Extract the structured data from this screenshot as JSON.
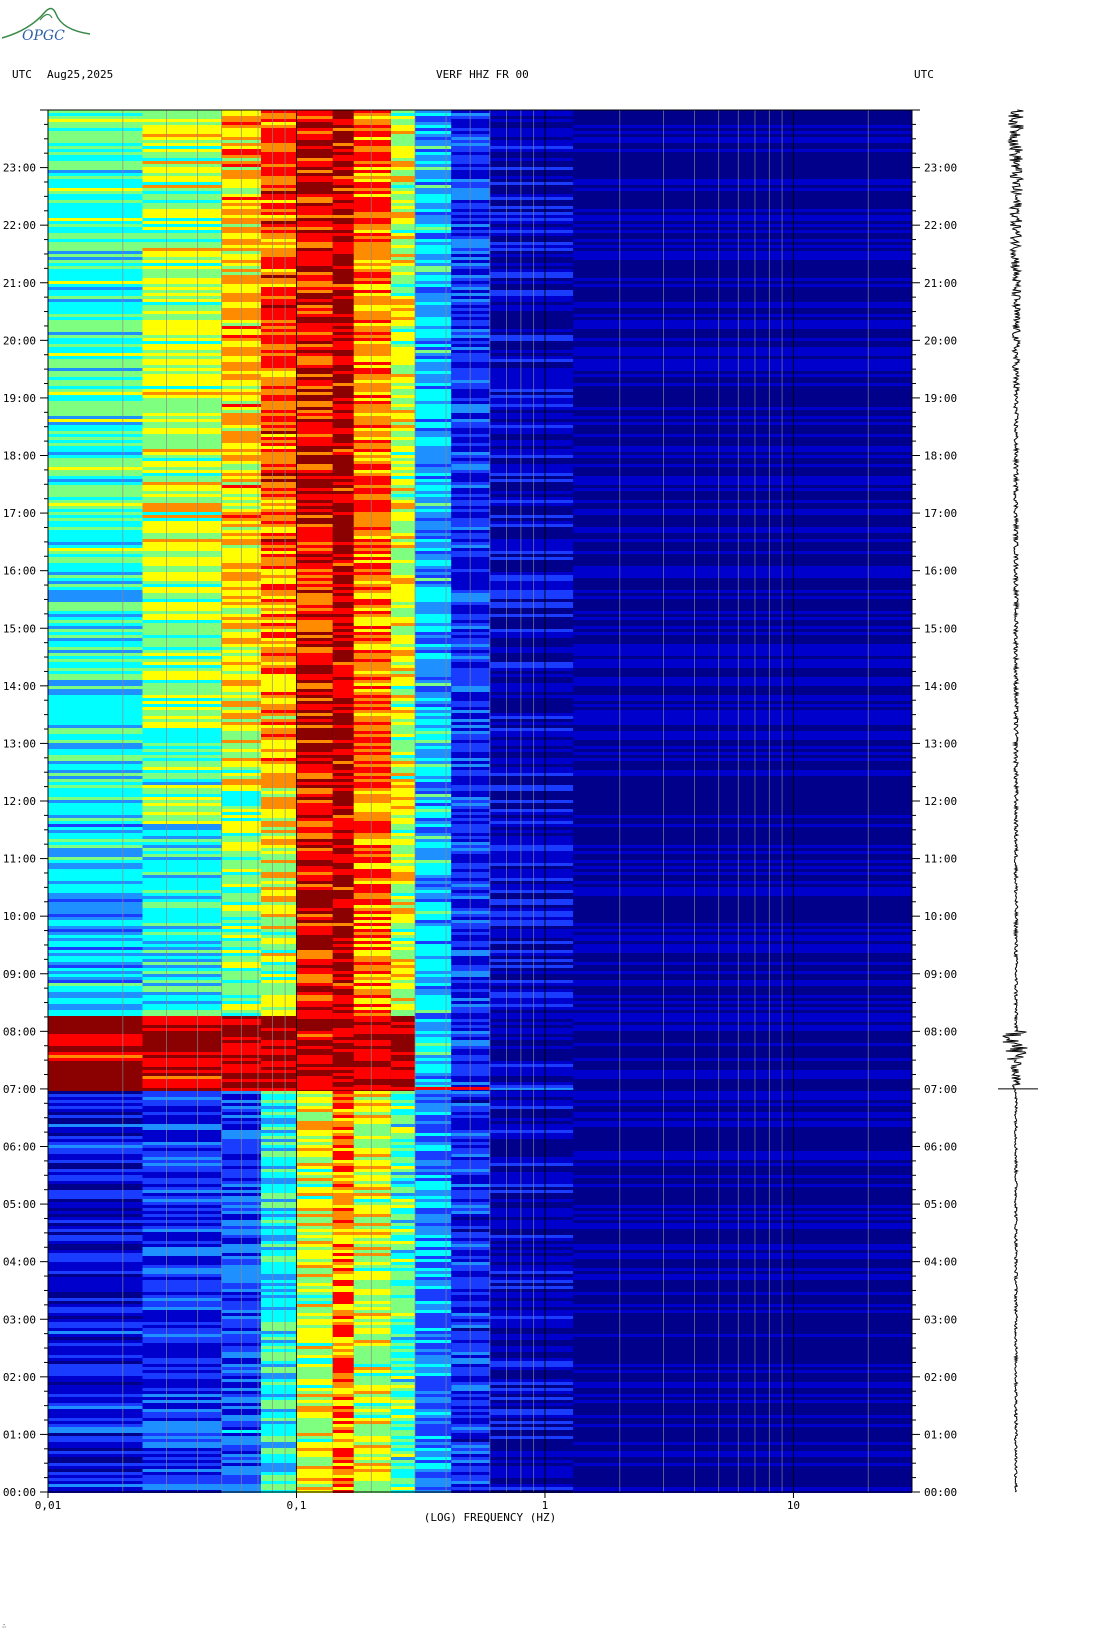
{
  "header": {
    "left_utc": "UTC",
    "date": "Aug25,2025",
    "station": "VERF HHZ FR 00",
    "right_utc": "UTC"
  },
  "logo": {
    "text": "OPGC",
    "colors": [
      "#3a8a4a",
      "#2d5fa8"
    ]
  },
  "chart_data": {
    "type": "heatmap",
    "title": "VERF HHZ FR 00",
    "xlabel": "(LOG) FREQUENCY (HZ)",
    "ylabel": "UTC",
    "x_scale": "log",
    "xlim": [
      0.01,
      30
    ],
    "x_ticks": [
      {
        "value": 0.01,
        "label": "0,01"
      },
      {
        "value": 0.1,
        "label": "0,1"
      },
      {
        "value": 1,
        "label": "1"
      },
      {
        "value": 10,
        "label": "10"
      }
    ],
    "ylim": [
      0,
      24
    ],
    "y_ticks": [
      "00:00",
      "01:00",
      "02:00",
      "03:00",
      "04:00",
      "05:00",
      "06:00",
      "07:00",
      "08:00",
      "09:00",
      "10:00",
      "11:00",
      "12:00",
      "13:00",
      "14:00",
      "15:00",
      "16:00",
      "17:00",
      "18:00",
      "19:00",
      "20:00",
      "21:00",
      "22:00",
      "23:00"
    ],
    "colormap": [
      "#00008b",
      "#0000cd",
      "#1a3cff",
      "#1e90ff",
      "#00ffff",
      "#7fff7f",
      "#ffff00",
      "#ff8c00",
      "#ff0000",
      "#8b0000"
    ],
    "event": {
      "time_utc_hours": 7.0,
      "label": "07:00"
    },
    "bands_hz": [
      {
        "from": 0.01,
        "to": 0.024,
        "level_before_event": 0.15,
        "level_after_event": 0.45
      },
      {
        "from": 0.024,
        "to": 0.05,
        "level_before_event": 0.2,
        "level_after_event": 0.55
      },
      {
        "from": 0.05,
        "to": 0.072,
        "level_before_event": 0.25,
        "level_after_event": 0.65
      },
      {
        "from": 0.072,
        "to": 0.1,
        "level_before_event": 0.45,
        "level_after_event": 0.75
      },
      {
        "from": 0.1,
        "to": 0.14,
        "level_before_event": 0.62,
        "level_after_event": 0.9
      },
      {
        "from": 0.14,
        "to": 0.17,
        "level_before_event": 0.78,
        "level_after_event": 0.95
      },
      {
        "from": 0.17,
        "to": 0.24,
        "level_before_event": 0.62,
        "level_after_event": 0.8
      },
      {
        "from": 0.24,
        "to": 0.3,
        "level_before_event": 0.5,
        "level_after_event": 0.62
      },
      {
        "from": 0.3,
        "to": 0.42,
        "level_before_event": 0.32,
        "level_after_event": 0.38
      },
      {
        "from": 0.42,
        "to": 0.6,
        "level_before_event": 0.18,
        "level_after_event": 0.2
      },
      {
        "from": 0.6,
        "to": 1.3,
        "level_before_event": 0.08,
        "level_after_event": 0.08
      },
      {
        "from": 1.3,
        "to": 30,
        "level_before_event": 0.02,
        "level_after_event": 0.02
      }
    ]
  }
}
